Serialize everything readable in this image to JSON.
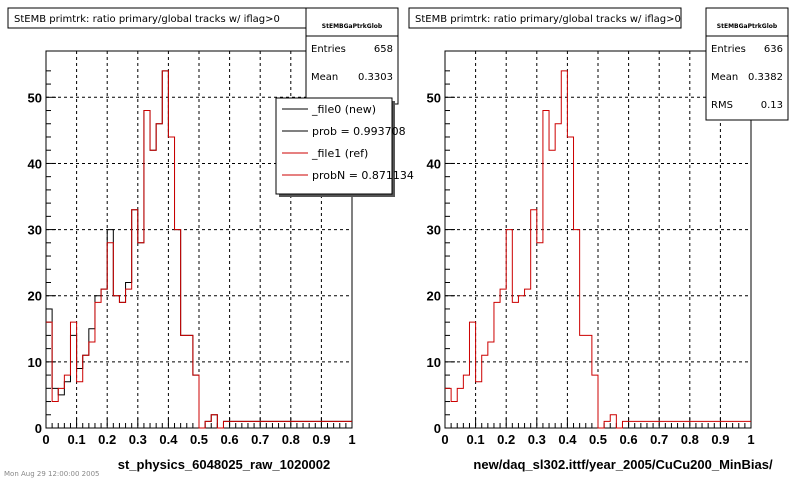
{
  "colors": {
    "new": "#000000",
    "ref": "#cc0000",
    "grid": "#000000"
  },
  "footer_text": "Mon Aug 29 12:00:00 2005",
  "chart_data": [
    {
      "type": "histogram",
      "title": "StEMB primtrk: ratio primary/global tracks w/ iflag>0",
      "xlabel": "st_physics_6048025_raw_1020002",
      "xlim": [
        0,
        1
      ],
      "ylim": [
        0,
        57
      ],
      "xticks": [
        0,
        0.1,
        0.2,
        0.3,
        0.4,
        0.5,
        0.6,
        0.7,
        0.8,
        0.9,
        1
      ],
      "xtick_labels": [
        "0",
        "0.1",
        "0.2",
        "0.3",
        "0.4",
        "0.5",
        "0.6",
        "0.7",
        "0.8",
        "0.9",
        "1"
      ],
      "yticks": [
        0,
        10,
        20,
        30,
        40,
        50
      ],
      "ytick_labels": [
        "0",
        "10",
        "20",
        "30",
        "40",
        "50"
      ],
      "grid": true,
      "stats": {
        "header": "StEMBGaPtrkGlob",
        "rows": [
          {
            "label": "Entries",
            "value": "658"
          },
          {
            "label": "Mean",
            "value": "0.3303"
          }
        ]
      },
      "legend": {
        "position": "top-right",
        "entries": [
          {
            "label": "_file0 (new)",
            "color": "#000000"
          },
          {
            "label": "prob = 0.993708",
            "color": "#000000"
          },
          {
            "label": "_file1 (ref)",
            "color": "#cc0000"
          },
          {
            "label": "probN = 0.871134",
            "color": "#cc0000"
          }
        ]
      },
      "bin_width": 0.02,
      "series": [
        {
          "name": "_file0 (new)",
          "color": "#000000",
          "values": [
            18,
            6,
            5,
            7,
            14,
            9,
            11,
            15,
            20,
            21,
            30,
            20,
            19,
            22,
            33,
            28,
            48,
            42,
            46,
            54,
            44,
            30,
            14,
            14,
            8,
            0,
            1,
            2,
            0,
            1,
            1,
            1,
            1,
            1,
            1,
            1,
            1,
            1,
            1,
            1,
            1,
            1,
            1,
            1,
            1,
            1,
            1,
            1,
            1,
            1
          ]
        },
        {
          "name": "_file1 (ref)",
          "color": "#cc0000",
          "values": [
            16,
            4,
            6,
            8,
            16,
            7,
            11,
            13,
            19,
            21,
            28,
            20,
            19,
            21,
            33,
            28,
            48,
            42,
            46,
            54,
            44,
            30,
            14,
            14,
            8,
            0,
            1,
            2,
            0,
            1,
            1,
            1,
            1,
            1,
            1,
            1,
            1,
            1,
            1,
            1,
            1,
            1,
            1,
            1,
            1,
            1,
            1,
            1,
            1,
            1
          ]
        }
      ]
    },
    {
      "type": "histogram",
      "title": "StEMB primtrk: ratio primary/global tracks w/ iflag>0",
      "xlabel": "new/daq_sl302.ittf/year_2005/CuCu200_MinBias/",
      "xlim": [
        0,
        1
      ],
      "ylim": [
        0,
        57
      ],
      "xticks": [
        0,
        0.1,
        0.2,
        0.3,
        0.4,
        0.5,
        0.6,
        0.7,
        0.8,
        0.9,
        1
      ],
      "xtick_labels": [
        "0",
        "0.1",
        "0.2",
        "0.3",
        "0.4",
        "0.5",
        "0.6",
        "0.7",
        "0.8",
        "0.9",
        "1"
      ],
      "yticks": [
        0,
        10,
        20,
        30,
        40,
        50
      ],
      "ytick_labels": [
        "0",
        "10",
        "20",
        "30",
        "40",
        "50"
      ],
      "grid": true,
      "stats": {
        "header": "StEMBGaPtrkGlob",
        "rows": [
          {
            "label": "Entries",
            "value": "636"
          },
          {
            "label": "Mean",
            "value": "0.3382"
          },
          {
            "label": "RMS",
            "value": "0.13"
          }
        ]
      },
      "legend": null,
      "bin_width": 0.02,
      "series": [
        {
          "name": "",
          "color": "#cc0000",
          "values": [
            6,
            4,
            6,
            8,
            16,
            7,
            11,
            13,
            19,
            21,
            30,
            19,
            20,
            21,
            33,
            28,
            48,
            42,
            46,
            54,
            44,
            30,
            14,
            14,
            8,
            0,
            1,
            2,
            0,
            1,
            1,
            1,
            1,
            1,
            1,
            1,
            1,
            1,
            1,
            1,
            1,
            1,
            1,
            1,
            1,
            1,
            1,
            1,
            1,
            1
          ]
        }
      ]
    }
  ]
}
